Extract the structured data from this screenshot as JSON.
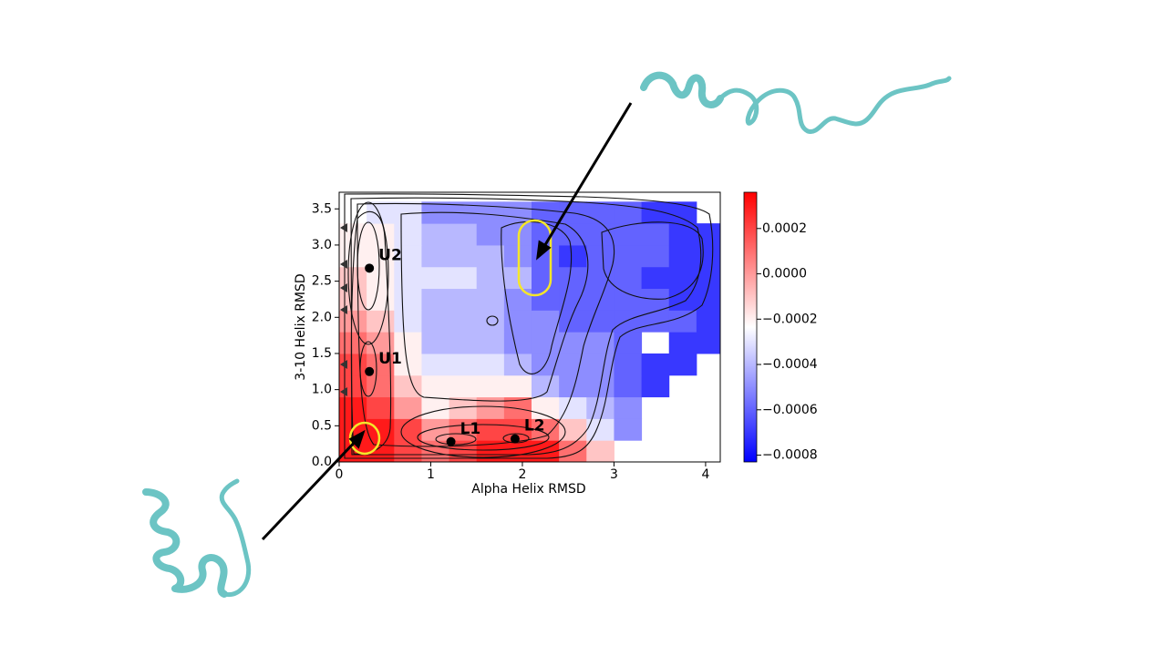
{
  "chart_data": {
    "type": "heatmap",
    "xlabel": "Alpha Helix RMSD",
    "ylabel": "3-10 Helix RMSD",
    "xlim": [
      0,
      4.16
    ],
    "ylim": [
      0,
      3.73
    ],
    "xticks": [
      0,
      1,
      2,
      3,
      4
    ],
    "yticks": [
      {
        "value": 0,
        "label": "0.0"
      },
      0.5,
      {
        "value": 1,
        "label": "1.0"
      },
      1.5,
      {
        "value": 2,
        "label": "2.0"
      },
      2.5,
      {
        "value": 3,
        "label": "3.0"
      },
      3.5
    ],
    "x_bins": [
      0,
      0.3,
      0.6,
      0.9,
      1.2,
      1.5,
      1.8,
      2.1,
      2.4,
      2.7,
      3.0,
      3.3,
      3.6,
      3.9,
      4.2
    ],
    "y_bins": [
      0,
      0.3,
      0.6,
      0.9,
      1.2,
      1.5,
      1.8,
      2.1,
      2.4,
      2.7,
      3.0,
      3.3,
      3.6
    ],
    "z": [
      [
        0.0003,
        0.0003,
        0.0002,
        0.0001,
        0.0002,
        0.0003,
        0.0003,
        0.0003,
        0.0001,
        -0.0001,
        null,
        null,
        null,
        null
      ],
      [
        0.0003,
        0.0003,
        0.0002,
        0.0,
        0.0001,
        0.0002,
        0.0002,
        0.0001,
        -0.0001,
        -0.0003,
        -0.0005,
        null,
        null,
        null
      ],
      [
        0.0003,
        0.0002,
        0.0,
        -0.0002,
        -0.0001,
        0.0,
        0.0001,
        -0.0002,
        -0.0003,
        -0.0004,
        -0.0005,
        null,
        null,
        null
      ],
      [
        0.0002,
        0.0001,
        -0.0001,
        -0.0002,
        -0.0002,
        -0.0002,
        -0.0002,
        -0.0004,
        -0.0005,
        -0.0005,
        -0.0006,
        -0.0007,
        null,
        null
      ],
      [
        0.0002,
        0.0001,
        -0.0002,
        -0.0003,
        -0.0003,
        -0.0003,
        -0.0004,
        -0.0005,
        -0.0005,
        -0.0005,
        -0.0006,
        -0.0007,
        -0.0007,
        null
      ],
      [
        0.0001,
        0.0,
        -0.0002,
        -0.0004,
        -0.0004,
        -0.0004,
        -0.0005,
        -0.0005,
        -0.0005,
        -0.0005,
        -0.0006,
        null,
        -0.0007,
        -0.0007
      ],
      [
        0.0,
        -0.0001,
        -0.0003,
        -0.0004,
        -0.0004,
        -0.0004,
        -0.0005,
        -0.0005,
        -0.0006,
        -0.0006,
        -0.0006,
        -0.0006,
        -0.0006,
        -0.0007
      ],
      [
        -0.0001,
        -0.0002,
        -0.0003,
        -0.0004,
        -0.0004,
        -0.0004,
        -0.0005,
        -0.0006,
        -0.0006,
        -0.0006,
        -0.0006,
        -0.0006,
        -0.0007,
        -0.0007
      ],
      [
        -0.0001,
        -0.0002,
        -0.0003,
        -0.0003,
        -0.0003,
        -0.0004,
        -0.0004,
        -0.0006,
        -0.0006,
        -0.0006,
        -0.0006,
        -0.0007,
        -0.0007,
        -0.0007
      ],
      [
        -0.0002,
        -0.0002,
        -0.0003,
        -0.0004,
        -0.0004,
        -0.0004,
        -0.0005,
        -0.0006,
        -0.0007,
        -0.0006,
        -0.0006,
        -0.0006,
        -0.0007,
        -0.0007
      ],
      [
        -0.0002,
        -0.0002,
        -0.0003,
        -0.0004,
        -0.0004,
        -0.0005,
        -0.0005,
        -0.0006,
        -0.0006,
        -0.0006,
        -0.0006,
        -0.0006,
        -0.0007,
        -0.0007
      ],
      [
        null,
        -0.0003,
        -0.0003,
        -0.0005,
        -0.0005,
        -0.0005,
        -0.0005,
        -0.0006,
        -0.0006,
        -0.0006,
        -0.0006,
        -0.0007,
        -0.0007,
        null
      ]
    ],
    "cmap_colors": [
      "#0000ff",
      "#ffffff",
      "#ff0000"
    ],
    "clim": [
      -0.00083,
      0.00036
    ],
    "cticks": [
      0.0002,
      {
        "value": 0,
        "label": "0.0000"
      },
      {
        "value": -0.0002,
        "label": "−0.0002"
      },
      {
        "value": -0.0004,
        "label": "−0.0004"
      },
      {
        "value": -0.0006,
        "label": "−0.0006"
      },
      {
        "value": -0.0008,
        "label": "−0.0008"
      }
    ],
    "points": [
      {
        "label": "U2",
        "x": 0.33,
        "y": 2.68
      },
      {
        "label": "U1",
        "x": 0.33,
        "y": 1.25
      },
      {
        "label": "L1",
        "x": 1.22,
        "y": 0.28
      },
      {
        "label": "L2",
        "x": 1.92,
        "y": 0.32
      }
    ]
  }
}
